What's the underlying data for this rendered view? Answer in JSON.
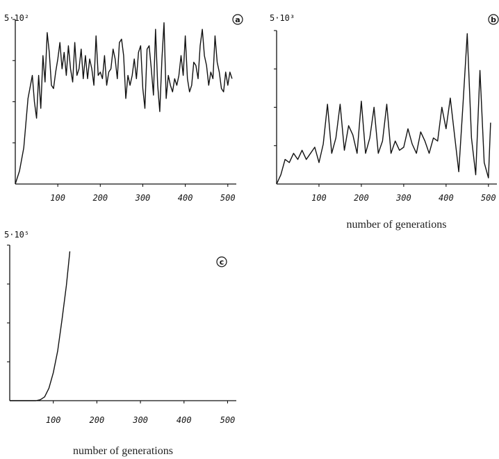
{
  "chart_data": [
    {
      "panel": "a",
      "type": "line",
      "y_scale_label": "5·10²",
      "xlabel": "",
      "xlim": [
        0,
        520
      ],
      "ylim": [
        0,
        500
      ],
      "xticks": [
        100,
        200,
        300,
        400,
        500
      ],
      "yticks": [
        125,
        250,
        375,
        500
      ],
      "x": [
        0,
        10,
        20,
        30,
        40,
        45,
        50,
        55,
        60,
        65,
        70,
        75,
        80,
        85,
        90,
        95,
        100,
        105,
        110,
        115,
        120,
        125,
        130,
        135,
        140,
        145,
        150,
        155,
        160,
        165,
        170,
        175,
        180,
        185,
        190,
        195,
        200,
        205,
        210,
        215,
        220,
        225,
        230,
        235,
        240,
        245,
        250,
        255,
        260,
        265,
        270,
        275,
        280,
        285,
        290,
        295,
        300,
        305,
        310,
        315,
        320,
        325,
        330,
        335,
        340,
        345,
        350,
        355,
        360,
        365,
        370,
        375,
        380,
        385,
        390,
        395,
        400,
        405,
        410,
        415,
        420,
        425,
        430,
        435,
        440,
        445,
        450,
        455,
        460,
        465,
        470,
        475,
        480,
        485,
        490,
        495,
        500,
        505,
        510
      ],
      "y": [
        0,
        40,
        110,
        260,
        330,
        250,
        200,
        330,
        230,
        390,
        310,
        460,
        400,
        300,
        290,
        340,
        380,
        430,
        350,
        400,
        330,
        420,
        350,
        310,
        430,
        330,
        350,
        410,
        320,
        390,
        320,
        380,
        350,
        300,
        450,
        330,
        340,
        320,
        390,
        300,
        340,
        350,
        410,
        380,
        320,
        430,
        440,
        390,
        260,
        330,
        300,
        330,
        380,
        320,
        400,
        420,
        290,
        230,
        410,
        420,
        350,
        270,
        470,
        300,
        220,
        380,
        490,
        260,
        330,
        300,
        280,
        320,
        300,
        330,
        390,
        330,
        450,
        320,
        280,
        300,
        370,
        360,
        320,
        420,
        470,
        390,
        360,
        300,
        340,
        320,
        450,
        370,
        340,
        290,
        280,
        340,
        300,
        340,
        320
      ]
    },
    {
      "panel": "b",
      "type": "line",
      "y_scale_label": "5·10³",
      "xlabel": "number of generations",
      "xlim": [
        0,
        520
      ],
      "ylim": [
        0,
        5000
      ],
      "xticks": [
        100,
        200,
        300,
        400,
        "500"
      ],
      "yticks": [
        1250,
        2500,
        3750,
        5000
      ],
      "x": [
        0,
        10,
        20,
        30,
        40,
        50,
        60,
        70,
        80,
        90,
        100,
        110,
        120,
        130,
        140,
        150,
        160,
        170,
        180,
        190,
        200,
        210,
        220,
        230,
        240,
        250,
        260,
        270,
        280,
        290,
        300,
        310,
        320,
        330,
        340,
        350,
        360,
        370,
        380,
        390,
        400,
        410,
        420,
        430,
        440,
        450,
        460,
        470,
        480,
        490,
        500,
        505
      ],
      "y": [
        0,
        300,
        800,
        700,
        1000,
        800,
        1100,
        800,
        1000,
        1200,
        700,
        1300,
        2600,
        1000,
        1500,
        2600,
        1100,
        1900,
        1600,
        1000,
        2700,
        1000,
        1500,
        2500,
        1000,
        1400,
        2600,
        1000,
        1400,
        1100,
        1200,
        1800,
        1300,
        1000,
        1700,
        1400,
        1000,
        1500,
        1400,
        2500,
        1800,
        2800,
        1600,
        400,
        2600,
        4900,
        1500,
        300,
        3700,
        700,
        200,
        2000
      ]
    },
    {
      "panel": "c",
      "type": "line",
      "y_scale_label": "5·10⁵",
      "xlabel": "number of generations",
      "xlim": [
        0,
        520
      ],
      "ylim": [
        0,
        500000
      ],
      "xticks": [
        100,
        200,
        300,
        400,
        500
      ],
      "yticks": [
        125000,
        250000,
        375000,
        500000
      ],
      "x": [
        0,
        60,
        70,
        80,
        90,
        100,
        110,
        120,
        130,
        138
      ],
      "y": [
        0,
        0,
        3000,
        12000,
        40000,
        90000,
        160000,
        260000,
        370000,
        480000
      ]
    }
  ],
  "panel_letters": {
    "a": "a",
    "b": "b",
    "c": "c"
  }
}
